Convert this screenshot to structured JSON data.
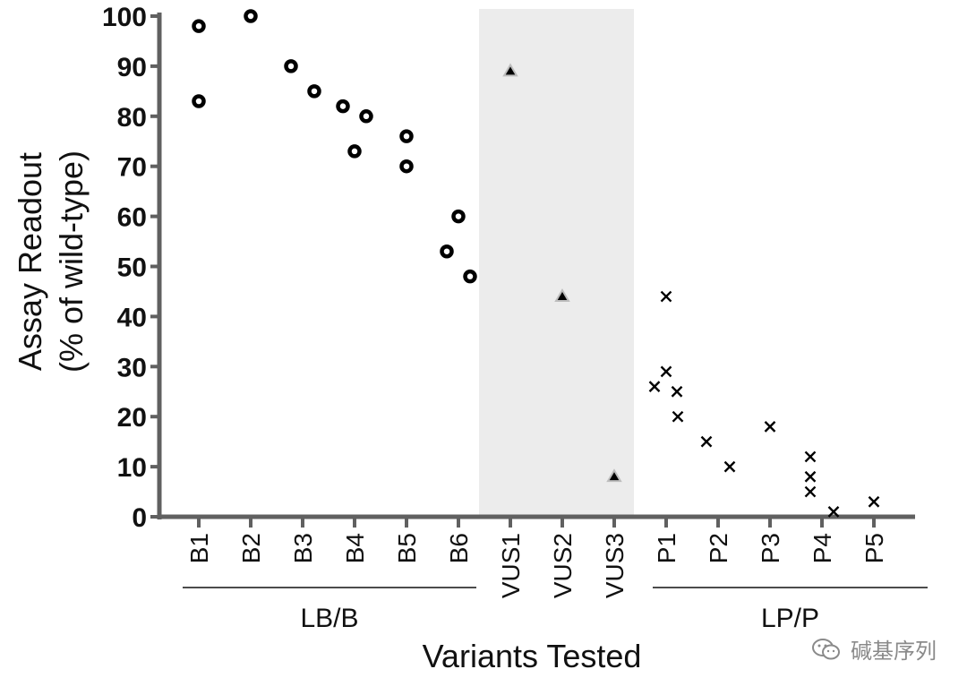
{
  "chart_data": {
    "type": "scatter",
    "title": "",
    "xlabel": "Variants Tested",
    "ylabel": [
      "Assay Readout",
      "(% of wild-type)"
    ],
    "ylim": [
      0,
      100
    ],
    "yticks": [
      "0",
      "10",
      "20",
      "30",
      "40",
      "50",
      "60",
      "70",
      "80",
      "90",
      "100"
    ],
    "categories": [
      "B1",
      "B2",
      "B3",
      "B4",
      "B5",
      "B6",
      "VUS1",
      "VUS2",
      "VUS3",
      "P1",
      "P2",
      "P3",
      "P4",
      "P5"
    ],
    "groups": [
      {
        "label": "LB/B",
        "categories": [
          "B1",
          "B2",
          "B3",
          "B4",
          "B5",
          "B6"
        ]
      },
      {
        "label": "",
        "categories": [
          "VUS1",
          "VUS2",
          "VUS3"
        ],
        "shaded": true
      },
      {
        "label": "LP/P",
        "categories": [
          "P1",
          "P2",
          "P3",
          "P4",
          "P5"
        ]
      }
    ],
    "series": [
      {
        "marker": "circle",
        "points": [
          {
            "x": "B1",
            "y": 98
          },
          {
            "x": "B1",
            "y": 83
          },
          {
            "x": "B2",
            "y": 100
          },
          {
            "x": "B3",
            "y": 90
          },
          {
            "x": "B3",
            "y": 85
          },
          {
            "x": "B4",
            "y": 82
          },
          {
            "x": "B4",
            "y": 80
          },
          {
            "x": "B4",
            "y": 73
          },
          {
            "x": "B5",
            "y": 76
          },
          {
            "x": "B5",
            "y": 70
          },
          {
            "x": "B6",
            "y": 60
          },
          {
            "x": "B6",
            "y": 53
          },
          {
            "x": "B6",
            "y": 48
          }
        ]
      },
      {
        "marker": "triangle",
        "points": [
          {
            "x": "VUS1",
            "y": 89
          },
          {
            "x": "VUS2",
            "y": 44
          },
          {
            "x": "VUS3",
            "y": 8
          }
        ]
      },
      {
        "marker": "x",
        "points": [
          {
            "x": "P1",
            "y": 44
          },
          {
            "x": "P1",
            "y": 29
          },
          {
            "x": "P1",
            "y": 26
          },
          {
            "x": "P1",
            "y": 25
          },
          {
            "x": "P1",
            "y": 20
          },
          {
            "x": "P2",
            "y": 15
          },
          {
            "x": "P2",
            "y": 10
          },
          {
            "x": "P3",
            "y": 18
          },
          {
            "x": "P4",
            "y": 12
          },
          {
            "x": "P4",
            "y": 8
          },
          {
            "x": "P4",
            "y": 5
          },
          {
            "x": "P4",
            "y": 1
          },
          {
            "x": "P5",
            "y": 3
          }
        ]
      }
    ],
    "colors": {
      "axis": "#606060",
      "marker": "#000000",
      "shade": "#ececec"
    }
  },
  "watermark": {
    "text": "碱基序列",
    "icon": "wechat-icon"
  }
}
